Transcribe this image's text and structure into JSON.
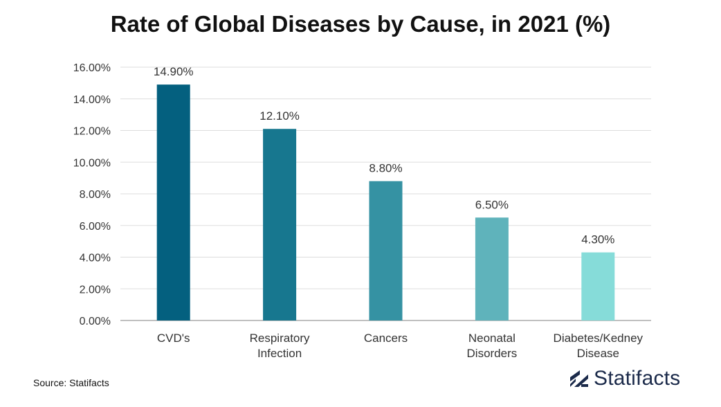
{
  "chart_data": {
    "type": "bar",
    "title": "Rate of Global Diseases by Cause, in 2021 (%)",
    "categories": [
      [
        "CVD's"
      ],
      [
        "Respiratory",
        "Infection"
      ],
      [
        "Cancers"
      ],
      [
        "Neonatal",
        "Disorders"
      ],
      [
        "Diabetes/Kedney",
        "Disease"
      ]
    ],
    "values": [
      14.9,
      12.1,
      8.8,
      6.5,
      4.3
    ],
    "data_labels": [
      "14.90%",
      "12.10%",
      "8.80%",
      "6.50%",
      "4.30%"
    ],
    "colors": [
      "#04607f",
      "#17778f",
      "#3592a3",
      "#5fb3bb",
      "#86dcd9"
    ],
    "ylim": [
      0,
      16
    ],
    "yticks": [
      0,
      2,
      4,
      6,
      8,
      10,
      12,
      14,
      16
    ],
    "ytick_labels": [
      "0.00%",
      "2.00%",
      "4.00%",
      "6.00%",
      "8.00%",
      "10.00%",
      "12.00%",
      "14.00%",
      "16.00%"
    ],
    "grid": true,
    "xlabel": "",
    "ylabel": ""
  },
  "footer": {
    "source": "Source: Statifacts",
    "brand": "Statifacts",
    "brand_logo_icon": "statifacts-logo-icon",
    "brand_color": "#1b2a4a"
  }
}
